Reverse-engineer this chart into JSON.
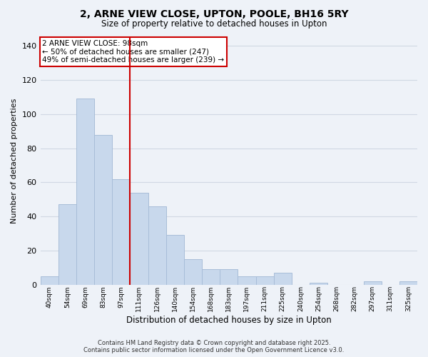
{
  "title": "2, ARNE VIEW CLOSE, UPTON, POOLE, BH16 5RY",
  "subtitle": "Size of property relative to detached houses in Upton",
  "xlabel": "Distribution of detached houses by size in Upton",
  "ylabel": "Number of detached properties",
  "bar_color": "#c8d8ec",
  "bar_edge_color": "#a8bdd8",
  "categories": [
    "40sqm",
    "54sqm",
    "69sqm",
    "83sqm",
    "97sqm",
    "111sqm",
    "126sqm",
    "140sqm",
    "154sqm",
    "168sqm",
    "183sqm",
    "197sqm",
    "211sqm",
    "225sqm",
    "240sqm",
    "254sqm",
    "268sqm",
    "282sqm",
    "297sqm",
    "311sqm",
    "325sqm"
  ],
  "values": [
    5,
    47,
    109,
    88,
    62,
    54,
    46,
    29,
    15,
    9,
    9,
    5,
    5,
    7,
    0,
    1,
    0,
    0,
    2,
    0,
    2
  ],
  "ylim": [
    0,
    145
  ],
  "yticks": [
    0,
    20,
    40,
    60,
    80,
    100,
    120,
    140
  ],
  "vline_x": 4.5,
  "vline_color": "#cc0000",
  "annotation_title": "2 ARNE VIEW CLOSE: 98sqm",
  "annotation_line1": "← 50% of detached houses are smaller (247)",
  "annotation_line2": "49% of semi-detached houses are larger (239) →",
  "annotation_box_color": "#ffffff",
  "annotation_box_edge": "#cc0000",
  "footer1": "Contains HM Land Registry data © Crown copyright and database right 2025.",
  "footer2": "Contains public sector information licensed under the Open Government Licence v3.0.",
  "background_color": "#eef2f8",
  "grid_color": "#d0d8e4"
}
